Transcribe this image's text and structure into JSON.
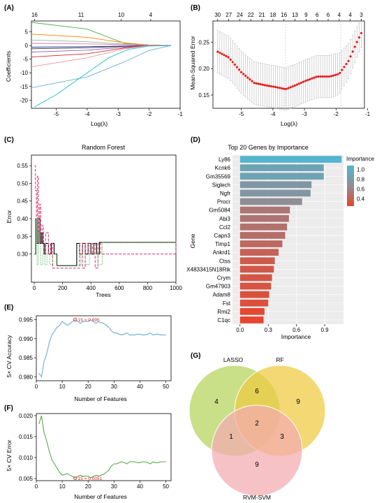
{
  "chart_data": [
    {
      "panel": "(A)",
      "type": "line",
      "xlabel": "Log(λ)",
      "ylabel": "Coefficients",
      "xlim": [
        -5.8,
        -1
      ],
      "ylim": [
        -23,
        9
      ],
      "xticks": [
        -5,
        -4,
        -3,
        -2,
        -1
      ],
      "yticks": [
        5,
        0,
        -5,
        -10,
        -15,
        -20
      ],
      "top_ticks": {
        "x": [
          -5.7,
          -4.2,
          -2.9,
          -1.95
        ],
        "labels": [
          "16",
          "11",
          "10",
          "4"
        ]
      },
      "series": [
        {
          "color": "#4daf4a",
          "x": [
            -5.8,
            -4,
            -2.8,
            -2.0,
            -1.3
          ],
          "y": [
            8.5,
            6,
            0.8,
            0.2,
            0
          ]
        },
        {
          "color": "#ff7f00",
          "x": [
            -5.8,
            -4,
            -2.8,
            -2.0,
            -1.3
          ],
          "y": [
            4.2,
            3,
            1.0,
            0.2,
            0
          ]
        },
        {
          "color": "#8fbc8f",
          "x": [
            -5.8,
            -4,
            -2.8,
            -2.0,
            -1.3
          ],
          "y": [
            2.0,
            1.4,
            0.5,
            0.1,
            0
          ]
        },
        {
          "color": "#e377c2",
          "x": [
            -5.8,
            -4,
            -2.8,
            -2.0,
            -1.3
          ],
          "y": [
            0.8,
            0.6,
            0.3,
            0.1,
            0
          ]
        },
        {
          "color": "#1f3b99",
          "x": [
            -5.8,
            -4,
            -2.8,
            -2.0,
            -1.3
          ],
          "y": [
            -0.6,
            -0.4,
            -0.2,
            0,
            0
          ]
        },
        {
          "color": "#333333",
          "x": [
            -5.8,
            -4,
            -2.8,
            -2.0,
            -1.3
          ],
          "y": [
            -1.2,
            -0.8,
            -0.3,
            0,
            0
          ]
        },
        {
          "color": "#9467bd",
          "x": [
            -5.8,
            -4,
            -2.8,
            -2.0,
            -1.3
          ],
          "y": [
            -2.4,
            -1.7,
            -0.6,
            0,
            0
          ]
        },
        {
          "color": "#d62728",
          "x": [
            -5.8,
            -4,
            -2.8,
            -2.0,
            -1.3
          ],
          "y": [
            -4.2,
            -3.0,
            -0.9,
            0,
            0
          ]
        },
        {
          "color": "#e7969c",
          "x": [
            -5.8,
            -4,
            -2.8,
            -2.0,
            -1.3
          ],
          "y": [
            -7.8,
            -4.5,
            -1.2,
            0,
            0
          ]
        },
        {
          "color": "#6baed6",
          "x": [
            -5.8,
            -4,
            -2.8,
            -2.0,
            -1.3
          ],
          "y": [
            -15.5,
            -11.5,
            -6.0,
            -1.8,
            0
          ]
        },
        {
          "color": "#17becf",
          "x": [
            -5.7,
            -5,
            -4,
            -3.3,
            -2.7,
            -2.0,
            -1.3
          ],
          "y": [
            -22.5,
            -18,
            -10,
            -4.5,
            -1.5,
            -0.2,
            0
          ]
        }
      ]
    },
    {
      "panel": "(B)",
      "type": "scatter",
      "xlabel": "Log(λ)",
      "ylabel": "Mean-Squared Error",
      "xlim": [
        -5.9,
        -1.1
      ],
      "ylim": [
        0.125,
        0.29
      ],
      "xticks": [
        -5,
        -4,
        -3,
        -2,
        -1
      ],
      "yticks": [
        0.15,
        0.2,
        0.25
      ],
      "top_ticks": {
        "x": [
          -5.75,
          -5.4,
          -5.05,
          -4.7,
          -4.35,
          -4.0,
          -3.65,
          -3.3,
          -2.95,
          -2.6,
          -2.25,
          -1.9,
          -1.55,
          -1.2
        ],
        "labels": [
          "30",
          "27",
          "24",
          "22",
          "21",
          "18",
          "16",
          "13",
          "9",
          "6",
          "6",
          "4",
          "4",
          "3"
        ]
      },
      "vlines": [
        -3.6,
        -1.85
      ],
      "curve": {
        "x": [
          -5.75,
          -5.4,
          -5.0,
          -4.6,
          -4.2,
          -3.9,
          -3.6,
          -3.3,
          -3.0,
          -2.6,
          -2.2,
          -1.9,
          -1.6,
          -1.3,
          -1.2
        ],
        "y": [
          0.232,
          0.221,
          0.193,
          0.173,
          0.168,
          0.165,
          0.161,
          0.168,
          0.176,
          0.185,
          0.185,
          0.19,
          0.215,
          0.255,
          0.267
        ]
      },
      "error_halfwidth": 0.04
    },
    {
      "panel": "(C)",
      "type": "line",
      "title": "Random Forest",
      "xlabel": "Trees",
      "ylabel": "Error",
      "xlim": [
        -20,
        1000
      ],
      "ylim": [
        0.22,
        0.58
      ],
      "xticks": [
        0,
        200,
        400,
        600,
        800,
        1000
      ],
      "yticks": [
        0.3,
        0.35,
        0.4,
        0.45,
        0.5,
        0.55
      ],
      "series": [
        {
          "color": "#000000",
          "style": "solid",
          "x": [
            1,
            10,
            20,
            30,
            40,
            50,
            60,
            70,
            80,
            100,
            120,
            140,
            160,
            180,
            250,
            300,
            320,
            340,
            360,
            380,
            400,
            420,
            440,
            460,
            1000
          ],
          "y": [
            0.3,
            0.4,
            0.33,
            0.4,
            0.33,
            0.36,
            0.33,
            0.3,
            0.33,
            0.3,
            0.33,
            0.3,
            0.267,
            0.267,
            0.267,
            0.33,
            0.3,
            0.33,
            0.3,
            0.33,
            0.3,
            0.33,
            0.3,
            0.333,
            0.333
          ]
        },
        {
          "color": "#e0457b",
          "style": "dashed",
          "x": [
            1,
            8,
            15,
            22,
            30,
            38,
            46,
            55,
            65,
            80,
            100,
            115,
            130,
            170,
            300,
            320,
            340,
            360,
            380,
            410,
            430,
            450,
            470,
            1000
          ],
          "y": [
            0.55,
            0.48,
            0.4,
            0.52,
            0.36,
            0.44,
            0.33,
            0.38,
            0.3,
            0.36,
            0.3,
            0.33,
            0.26,
            0.26,
            0.26,
            0.33,
            0.26,
            0.33,
            0.3,
            0.33,
            0.26,
            0.33,
            0.3,
            0.333
          ]
        },
        {
          "color": "#4daf4a",
          "style": "dotted",
          "x": [
            1,
            10,
            20,
            30,
            45,
            60,
            75,
            90,
            110,
            130,
            160,
            300,
            330,
            360,
            390,
            420,
            450,
            480,
            1000
          ],
          "y": [
            0.3,
            0.4,
            0.27,
            0.36,
            0.27,
            0.3,
            0.27,
            0.3,
            0.27,
            0.3,
            0.267,
            0.267,
            0.3,
            0.27,
            0.33,
            0.3,
            0.27,
            0.333,
            0.333
          ]
        }
      ]
    },
    {
      "panel": "(D)",
      "type": "bar",
      "title": "Top 20 Genes by Importance",
      "xlabel": "Importance",
      "ylabel": "Gene",
      "legend_title": "Importance",
      "legend_ticks": [
        1.0,
        0.8,
        0.6,
        0.4
      ],
      "xlim": [
        -0.08,
        1.1
      ],
      "xticks": [
        0.0,
        0.3,
        0.6,
        0.9
      ],
      "colorscale": {
        "low": "#e8452e",
        "mid": "#8e8e96",
        "high": "#53b5cf",
        "min": 0.25,
        "max": 1.08
      },
      "categories": [
        "Ly86",
        "Kcnk6",
        "Gm35569",
        "Siglech",
        "Ngfr",
        "Procr",
        "Gm5084",
        "Abi3",
        "Ccl2",
        "Capn3",
        "Timp1",
        "Ankrd1",
        "Ctss",
        "X4833415N18Rik",
        "Crym",
        "Gm47903",
        "Adam8",
        "Fst",
        "Rmi2",
        "C1qc"
      ],
      "values": [
        1.08,
        0.89,
        0.89,
        0.76,
        0.75,
        0.66,
        0.53,
        0.52,
        0.5,
        0.48,
        0.45,
        0.41,
        0.37,
        0.36,
        0.34,
        0.33,
        0.31,
        0.3,
        0.26,
        0.25
      ]
    },
    {
      "panel": "(E)",
      "type": "line",
      "xlabel": "Number of Features",
      "ylabel": "5× CV Accuracy",
      "xlim": [
        0,
        52
      ],
      "ylim": [
        0.979,
        0.996
      ],
      "xticks": [
        0,
        10,
        20,
        30,
        40,
        50
      ],
      "yticks": [
        0.98,
        0.985,
        0.99,
        0.995
      ],
      "annotation": {
        "text": "15 = 0.995",
        "x": 15,
        "y": 0.995
      },
      "x": [
        1,
        2,
        3,
        4,
        5,
        6,
        7,
        8,
        9,
        10,
        11,
        12,
        13,
        14,
        15,
        16,
        17,
        18,
        19,
        20,
        21,
        22,
        23,
        24,
        25,
        26,
        27,
        28,
        29,
        30,
        31,
        32,
        33,
        34,
        35,
        36,
        37,
        38,
        39,
        40,
        41,
        42,
        43,
        44,
        45,
        46,
        47,
        48,
        49,
        50
      ],
      "y": [
        0.981,
        0.98,
        0.984,
        0.986,
        0.989,
        0.991,
        0.992,
        0.993,
        0.9935,
        0.9945,
        0.994,
        0.9935,
        0.994,
        0.9945,
        0.995,
        0.9945,
        0.994,
        0.9945,
        0.9945,
        0.9945,
        0.995,
        0.9945,
        0.994,
        0.9945,
        0.9942,
        0.994,
        0.9935,
        0.993,
        0.992,
        0.9915,
        0.9915,
        0.9912,
        0.991,
        0.9912,
        0.9915,
        0.991,
        0.991,
        0.991,
        0.9912,
        0.9912,
        0.991,
        0.991,
        0.9912,
        0.9915,
        0.991,
        0.9912,
        0.9912,
        0.991,
        0.991,
        0.991
      ]
    },
    {
      "panel": "(F)",
      "type": "line",
      "xlabel": "Number of Features",
      "ylabel": "5× CV Error",
      "xlim": [
        0,
        52
      ],
      "ylim": [
        0.0045,
        0.0205
      ],
      "xticks": [
        0,
        10,
        20,
        30,
        40,
        50
      ],
      "yticks": [
        0.005,
        0.01,
        0.015,
        0.02
      ],
      "annotation": {
        "text": "15 = 0.0051",
        "x": 15,
        "y": 0.0051
      },
      "x": [
        1,
        2,
        3,
        4,
        5,
        6,
        7,
        8,
        9,
        10,
        11,
        12,
        13,
        14,
        15,
        16,
        17,
        18,
        19,
        20,
        21,
        22,
        23,
        24,
        25,
        26,
        27,
        28,
        29,
        30,
        31,
        32,
        33,
        34,
        35,
        36,
        37,
        38,
        39,
        40,
        41,
        42,
        43,
        44,
        45,
        46,
        47,
        48,
        49,
        50
      ],
      "y": [
        0.018,
        0.02,
        0.016,
        0.014,
        0.0115,
        0.0095,
        0.0085,
        0.0075,
        0.0065,
        0.0058,
        0.006,
        0.0062,
        0.0058,
        0.0055,
        0.0051,
        0.0055,
        0.0058,
        0.0055,
        0.0056,
        0.0055,
        0.0052,
        0.0055,
        0.0058,
        0.0056,
        0.0058,
        0.006,
        0.0065,
        0.007,
        0.008,
        0.0085,
        0.0085,
        0.0088,
        0.009,
        0.0088,
        0.0085,
        0.009,
        0.009,
        0.009,
        0.0088,
        0.0088,
        0.009,
        0.009,
        0.0088,
        0.0085,
        0.009,
        0.0088,
        0.0088,
        0.009,
        0.009,
        0.009
      ]
    },
    {
      "panel": "(G)",
      "type": "venn",
      "sets": [
        {
          "name": "LASSO",
          "color": "#b5d45a"
        },
        {
          "name": "RF",
          "color": "#eec93e"
        },
        {
          "name": "RVM-SVM",
          "color": "#f4aab0"
        }
      ],
      "regions": {
        "LASSO_only": 4,
        "RF_only": 9,
        "RVM_only": 9,
        "LASSO_RF": 6,
        "LASSO_RVM": 1,
        "RF_RVM": 3,
        "all": 2
      }
    }
  ]
}
